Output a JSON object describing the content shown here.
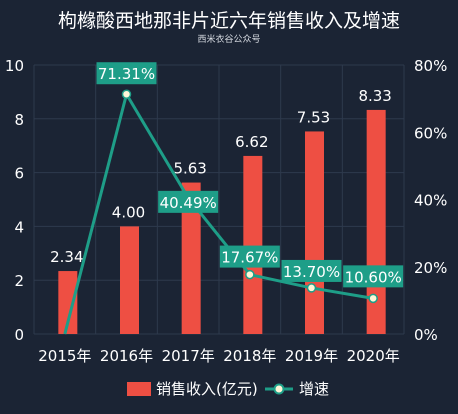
{
  "colors": {
    "background": "#1b2434",
    "bar": "#ee4f43",
    "line": "#1e9e88",
    "point_fill": "#fff6d8",
    "text": "#ffffff",
    "subtext": "#d7dbe2",
    "grid": "#2e3a4d"
  },
  "chart_data": {
    "type": "bar",
    "title": "枸橼酸西地那非片近六年销售收入及增速",
    "subtitle": "西米衣谷公众号",
    "categories": [
      "2015年",
      "2016年",
      "2017年",
      "2018年",
      "2019年",
      "2020年"
    ],
    "series": [
      {
        "name": "销售收入(亿元)",
        "type": "bar",
        "axis": "left",
        "values": [
          2.34,
          4.0,
          5.63,
          6.62,
          7.53,
          8.33
        ],
        "labels": [
          "2.34",
          "4.00",
          "5.63",
          "6.62",
          "7.53",
          "8.33"
        ]
      },
      {
        "name": "增速",
        "type": "line",
        "axis": "right",
        "values": [
          null,
          71.31,
          40.49,
          17.67,
          13.7,
          10.6
        ],
        "line_start_value": 0,
        "labels": [
          "",
          "71.31%",
          "40.49%",
          "17.67%",
          "13.70%",
          "10.60%"
        ]
      }
    ],
    "y_left": {
      "range": [
        0,
        10
      ],
      "ticks": [
        "0",
        "2",
        "4",
        "6",
        "8",
        "10"
      ]
    },
    "y_right": {
      "range": [
        0,
        80
      ],
      "ticks": [
        "0%",
        "20%",
        "40%",
        "60%",
        "80%"
      ]
    },
    "grid": true,
    "legend_position": "bottom-center"
  }
}
